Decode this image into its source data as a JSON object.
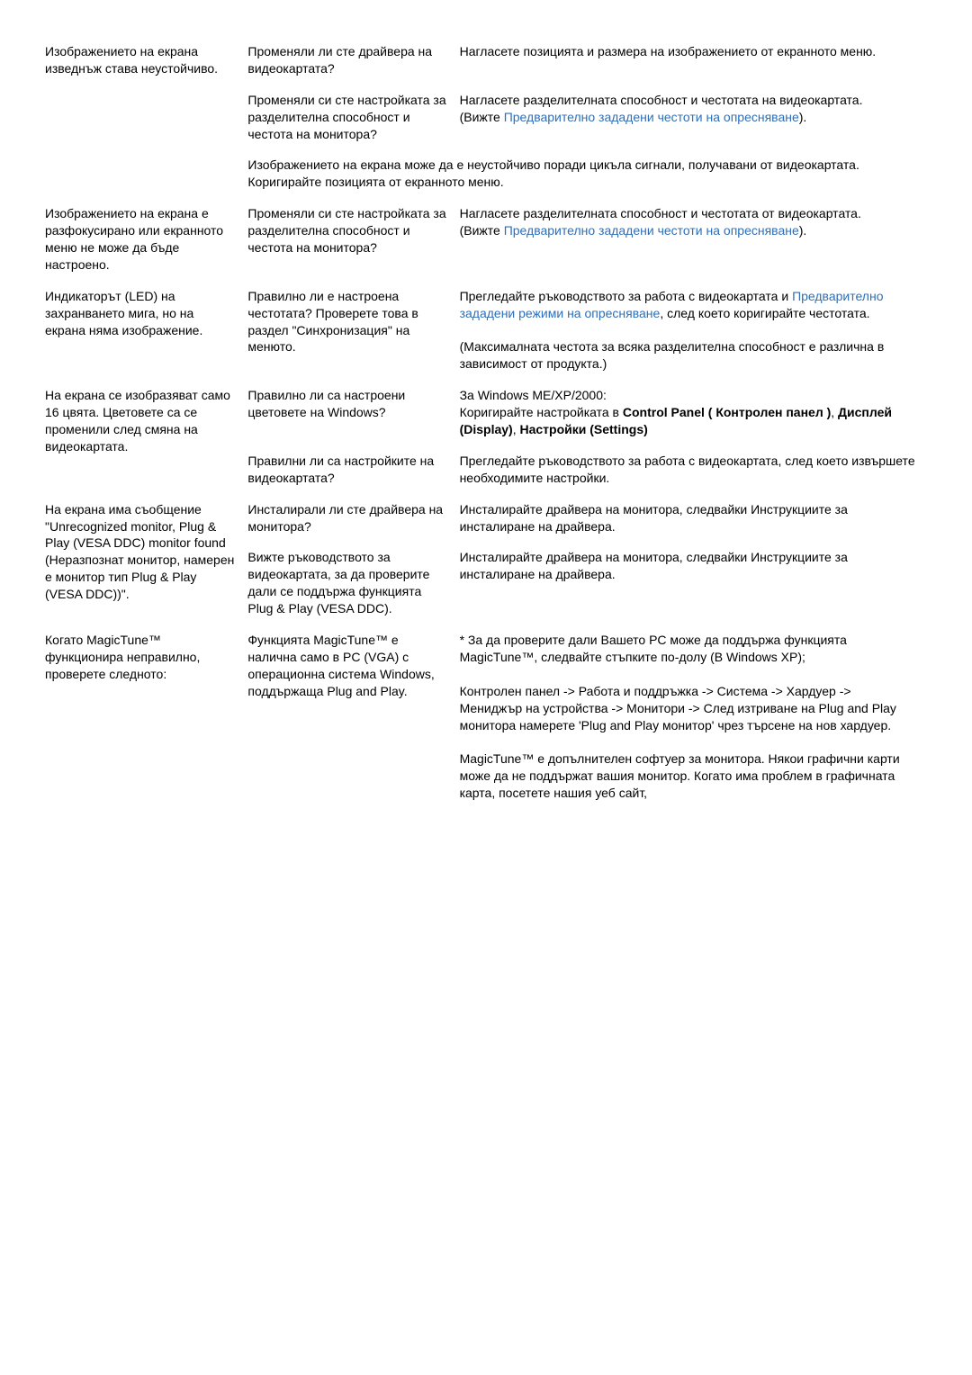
{
  "link_color": "#2e6fb8",
  "rows": [
    {
      "issue": "Изображението на екрана изведнъж става неустойчиво.",
      "cells": [
        {
          "check": "Променяли ли сте драйвера на видеокартата?",
          "fix": "Нагласете позицията и размера на изображението от екранното меню."
        },
        {
          "check": "Променяли си сте настройката за разделителна способност и честота на монитора?",
          "fix_pre": "Нагласете разделителната способност и честотата на видеокартата.\n(Вижте ",
          "fix_link": "Предварително зададени честоти на опресняване",
          "fix_post": ")."
        },
        {
          "span": true,
          "fix": "Изображението на екрана може да е неустойчиво поради цикъла сигнали, получавани от видеокартата. Коригирайте позицията от екранното меню."
        }
      ]
    },
    {
      "issue": "Изображението на екрана е разфокусирано или екранното меню не може да бъде настроено.",
      "cells": [
        {
          "check": "Променяли си сте настройката за разделителна способност и честота на монитора?",
          "fix_pre": "Нагласете разделителната способност и честотата от видеокартата.\n(Вижте ",
          "fix_link": "Предварително зададени честоти на опресняване",
          "fix_post": ")."
        }
      ]
    },
    {
      "issue": "Индикаторът (LED) на захранването мига, но на екрана няма изображение.",
      "cells": [
        {
          "check": "Правилно ли е настроена честотата? Проверете това в раздел \"Синхронизация\" на менюто.",
          "fix_pre": "Прегледайте ръководството за работа с видеокартата и ",
          "fix_link": "Предварително зададени режими на опресняване",
          "fix_post": ", след което коригирайте честотата.\n\n(Максималната честота за всяка разделителна способност е различна в зависимост от продукта.)"
        }
      ]
    },
    {
      "issue": "На екрана се изобразяват само 16 цвята. Цветовете са се променили след смяна на видеокартата.",
      "cells": [
        {
          "check": "Правилно ли са настроени цветовете на Windows?",
          "fix_html": "За Windows ME/XP/2000:<br>Коригирайте настройката в <b>Control Panel ( Контролен панел )</b>, <b>Дисплей (Display)</b>, <b>Настройки (Settings)</b>"
        },
        {
          "check": "Правилни ли са настройките на видеокартата?",
          "fix": "Прегледайте ръководството за работа с видеокартата, след което извършете необходимите настройки."
        }
      ]
    },
    {
      "issue": "На екрана има съобщение \"Unrecognized monitor, Plug & Play (VESA DDC) monitor found (Неразпознат монитор, намерен е монитор тип Plug & Play (VESA DDC))\".",
      "cells": [
        {
          "check": "Инсталирали ли сте драйвера на монитора?",
          "fix": "Инсталирайте драйвера на монитора, следвайки Инструкциите за инсталиране на драйвера."
        },
        {
          "check": "Вижте ръководството за видеокартата, за да проверите дали се поддържа функцията Plug & Play (VESA DDC).",
          "fix": "Инсталирайте драйвера на монитора, следвайки Инструкциите за инсталиране на драйвера."
        }
      ]
    },
    {
      "issue": "Когато MagicTune™ функционира неправилно, проверете следното:",
      "cells": [
        {
          "check": "Функцията MagicTune™ е налична само в PC (VGA) с операционна система Windows, поддържаща Plug and Play.",
          "fix": "* За да проверите дали Вашето PC може да поддържа функцията MagicTune™, следвайте стъпките по-долу (В Windows XP);\n\nКонтролен панел -> Работа и поддръжка -> Система -> Хардуер -> Мениджър на устройства -> Монитори -> След изтриване на Plug and Play монитора намерете 'Plug and Play монитор' чрез търсене на нов хардуер.\n\nMagicTune™ е допълнителен софтуер за монитора. Някои графични карти може да не поддържат вашия монитор. Когато има проблем в графичната карта, посетете нашия уеб сайт,"
        }
      ]
    }
  ]
}
